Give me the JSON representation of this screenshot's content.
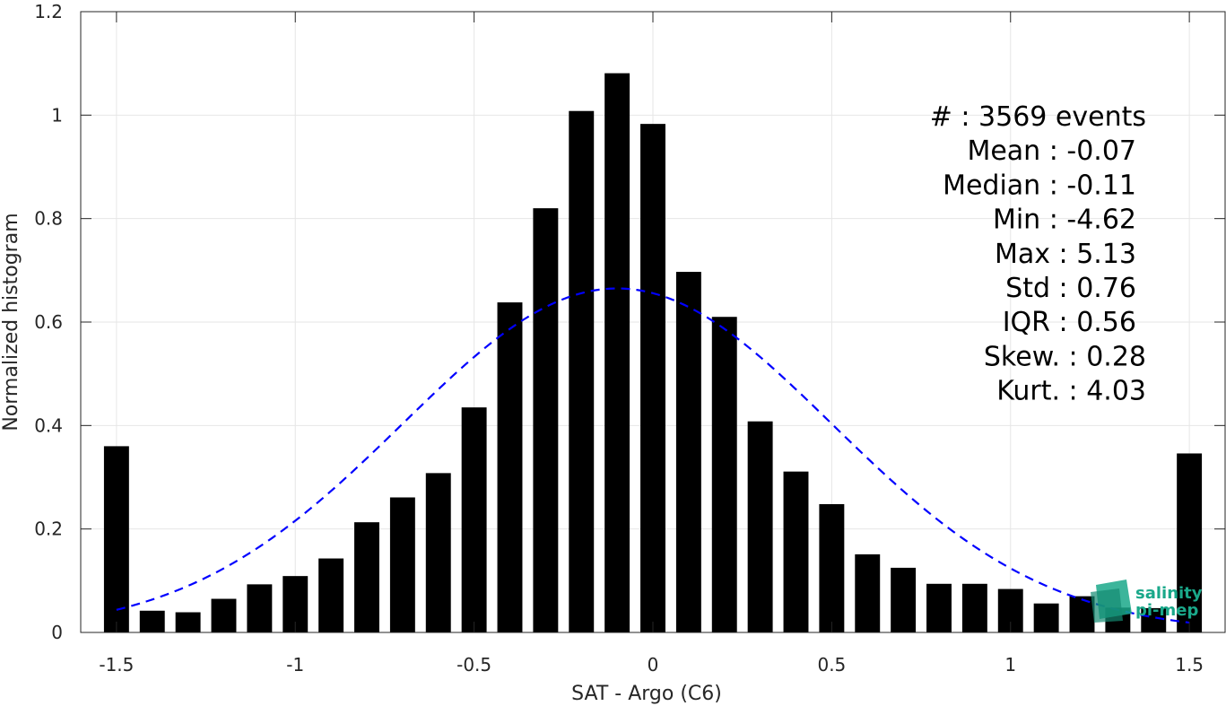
{
  "chart_data": {
    "type": "bar",
    "xlabel": "SAT - Argo (C6)",
    "ylabel": "Normalized histogram",
    "xlim": [
      -1.6,
      1.6
    ],
    "ylim": [
      0,
      1.2
    ],
    "xticks": [
      "-1.5",
      "-1",
      "-0.5",
      "0",
      "0.5",
      "1",
      "1.5"
    ],
    "yticks": [
      "0",
      "0.2",
      "0.4",
      "0.6",
      "0.8",
      "1",
      "1.2"
    ],
    "grid": true,
    "bar_color": "#000000",
    "bins": [
      {
        "x": -1.5,
        "y": 0.36
      },
      {
        "x": -1.4,
        "y": 0.042
      },
      {
        "x": -1.3,
        "y": 0.039
      },
      {
        "x": -1.2,
        "y": 0.065
      },
      {
        "x": -1.1,
        "y": 0.093
      },
      {
        "x": -1.0,
        "y": 0.109
      },
      {
        "x": -0.9,
        "y": 0.143
      },
      {
        "x": -0.8,
        "y": 0.213
      },
      {
        "x": -0.7,
        "y": 0.261
      },
      {
        "x": -0.6,
        "y": 0.308
      },
      {
        "x": -0.5,
        "y": 0.435
      },
      {
        "x": -0.4,
        "y": 0.638
      },
      {
        "x": -0.3,
        "y": 0.82
      },
      {
        "x": -0.2,
        "y": 1.008
      },
      {
        "x": -0.1,
        "y": 1.081
      },
      {
        "x": 0.0,
        "y": 0.983
      },
      {
        "x": 0.1,
        "y": 0.697
      },
      {
        "x": 0.2,
        "y": 0.61
      },
      {
        "x": 0.3,
        "y": 0.408
      },
      {
        "x": 0.4,
        "y": 0.311
      },
      {
        "x": 0.5,
        "y": 0.248
      },
      {
        "x": 0.6,
        "y": 0.151
      },
      {
        "x": 0.7,
        "y": 0.125
      },
      {
        "x": 0.8,
        "y": 0.094
      },
      {
        "x": 0.9,
        "y": 0.094
      },
      {
        "x": 1.0,
        "y": 0.084
      },
      {
        "x": 1.1,
        "y": 0.056
      },
      {
        "x": 1.2,
        "y": 0.07
      },
      {
        "x": 1.3,
        "y": 0.048
      },
      {
        "x": 1.4,
        "y": 0.047
      },
      {
        "x": 1.5,
        "y": 0.346
      }
    ],
    "fit": {
      "type": "gaussian",
      "mean": -0.1,
      "std": 0.6,
      "peak": 0.665,
      "x_range": [
        -1.5,
        1.5
      ],
      "color": "#0000ff",
      "style": "dashed"
    },
    "stats": [
      "#  : 3569 events",
      "Mean : -0.07",
      "Median : -0.11",
      "Min : -4.62",
      "Max : 5.13",
      "Std : 0.76",
      "IQR : 0.56",
      "Skew. : 0.28",
      "Kurt. : 4.03"
    ]
  },
  "logo": {
    "line1": "salinity",
    "line2": "pi-mep",
    "color": "#1aa88a"
  }
}
